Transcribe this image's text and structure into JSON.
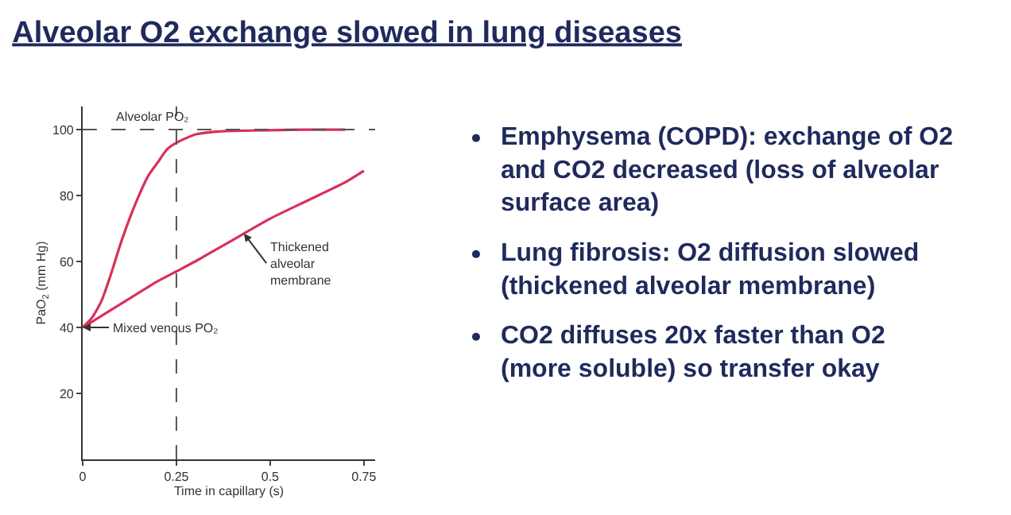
{
  "chart_data": {
    "type": "line",
    "title": "Alveolar O2 exchange slowed in lung diseases",
    "xlabel": "Time in capillary (s)",
    "ylabel": "PaO$_{2}$ (mm Hg)",
    "series": [
      {
        "color": "#d8305a",
        "x": [
          0,
          0.025,
          0.05,
          0.075,
          0.1,
          0.125,
          0.15,
          0.175,
          0.2,
          0.225,
          0.25,
          0.3,
          0.35,
          0.4,
          0.5,
          0.6,
          0.7
        ],
        "values": [
          40,
          43,
          48,
          56,
          65,
          73,
          80,
          86,
          90,
          94,
          96,
          98.5,
          99.3,
          99.6,
          99.8,
          100,
          100
        ]
      },
      {
        "color": "#d8305a",
        "x": [
          0,
          0.1,
          0.2,
          0.25,
          0.3,
          0.4,
          0.43,
          0.5,
          0.6,
          0.7,
          0.75
        ],
        "values": [
          40,
          47,
          54,
          57,
          60,
          66.5,
          68.5,
          73,
          78.5,
          84,
          87.5
        ]
      }
    ],
    "xlim": [
      0,
      0.78
    ],
    "ylim": [
      0,
      107
    ],
    "xticks": [
      0,
      0.25,
      0.5,
      0.75
    ],
    "yticks": [
      20,
      40,
      60,
      80,
      100
    ],
    "marker": "none",
    "line_style": "solid",
    "ref_lines": [
      {
        "axis": "y",
        "value": 100,
        "label": "Alveolar PO₂",
        "color": "#555555",
        "line_style": "dashed"
      },
      {
        "axis": "x",
        "value": 0.25,
        "label": null,
        "color": "#555555",
        "line_style": "dashed"
      }
    ],
    "annotations": [
      {
        "text": "Mixed venous PO₂",
        "x": 0,
        "y": 40
      },
      {
        "text": "Thickened alveolar membrane",
        "x": 0.43,
        "y": 68.5
      },
      "Emphysema (COPD): exchange of O2 and CO2 decreased (loss of alveolar surface area)",
      "Lung fibrosis: O2 diffusion slowed (thickened alveolar membrane)",
      "CO2 diffuses 20x faster than O2 (more soluble) so transfer okay"
    ]
  }
}
